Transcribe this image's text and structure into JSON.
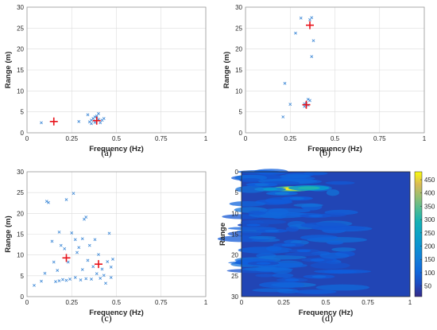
{
  "chart_data": [
    {
      "panel": "a",
      "type": "scatter",
      "caption": "(a)",
      "xlabel": "Frequency (Hz)",
      "ylabel": "Range (m)",
      "xlim": [
        0,
        1
      ],
      "ylim": [
        0,
        30
      ],
      "xticks": [
        "0",
        "0.25",
        "0.5",
        "0.75",
        "1"
      ],
      "yticks": [
        "0",
        "5",
        "10",
        "15",
        "20",
        "25",
        "30"
      ],
      "grid": true,
      "series": [
        {
          "marker": "x",
          "color": "#4a90d9",
          "points": [
            [
              0.08,
              2.4
            ],
            [
              0.29,
              2.7
            ],
            [
              0.34,
              4.3
            ],
            [
              0.35,
              2.6
            ],
            [
              0.36,
              3.0
            ],
            [
              0.37,
              3.4
            ],
            [
              0.38,
              2.5
            ],
            [
              0.39,
              4.0
            ],
            [
              0.4,
              4.6
            ],
            [
              0.4,
              3.2
            ],
            [
              0.41,
              2.4
            ],
            [
              0.42,
              3.0
            ],
            [
              0.43,
              3.4
            ],
            [
              0.36,
              2.2
            ],
            [
              0.38,
              3.8
            ]
          ]
        },
        {
          "marker": "+",
          "color": "#e8141c",
          "points": [
            [
              0.15,
              2.7
            ],
            [
              0.39,
              2.9
            ]
          ]
        }
      ]
    },
    {
      "panel": "b",
      "type": "scatter",
      "caption": "(b)",
      "xlabel": "Frequency (Hz)",
      "ylabel": "Range (m)",
      "xlim": [
        0,
        1
      ],
      "ylim": [
        0,
        30
      ],
      "xticks": [
        "0",
        "0.25",
        "0.5",
        "0.75",
        "1"
      ],
      "yticks": [
        "0",
        "5",
        "10",
        "15",
        "20",
        "25",
        "30"
      ],
      "grid": true,
      "series": [
        {
          "marker": "x",
          "color": "#4a90d9",
          "points": [
            [
              0.21,
              3.8
            ],
            [
              0.22,
              11.8
            ],
            [
              0.25,
              6.8
            ],
            [
              0.28,
              23.8
            ],
            [
              0.31,
              27.4
            ],
            [
              0.33,
              6.3
            ],
            [
              0.34,
              7.0
            ],
            [
              0.35,
              6.6
            ],
            [
              0.36,
              7.7
            ],
            [
              0.35,
              8.0
            ],
            [
              0.36,
              27.0
            ],
            [
              0.37,
              27.5
            ],
            [
              0.38,
              22.0
            ],
            [
              0.37,
              18.2
            ],
            [
              0.33,
              6.9
            ]
          ]
        },
        {
          "marker": "+",
          "color": "#e8141c",
          "points": [
            [
              0.36,
              25.7
            ],
            [
              0.34,
              6.7
            ]
          ]
        }
      ]
    },
    {
      "panel": "c",
      "type": "scatter",
      "caption": "(c)",
      "xlabel": "Frequency (Hz)",
      "ylabel": "Range (m)",
      "xlim": [
        0,
        1
      ],
      "ylim": [
        0,
        30
      ],
      "xticks": [
        "0",
        "0.25",
        "0.5",
        "0.75",
        "1"
      ],
      "yticks": [
        "0",
        "5",
        "10",
        "15",
        "20",
        "25",
        "30"
      ],
      "grid": true,
      "series": [
        {
          "marker": "x",
          "color": "#4a90d9",
          "points": [
            [
              0.04,
              2.7
            ],
            [
              0.08,
              3.7
            ],
            [
              0.1,
              5.6
            ],
            [
              0.11,
              22.9
            ],
            [
              0.12,
              22.6
            ],
            [
              0.14,
              13.3
            ],
            [
              0.15,
              8.3
            ],
            [
              0.16,
              3.6
            ],
            [
              0.17,
              6.3
            ],
            [
              0.18,
              3.8
            ],
            [
              0.18,
              15.5
            ],
            [
              0.19,
              12.3
            ],
            [
              0.2,
              4.1
            ],
            [
              0.21,
              11.5
            ],
            [
              0.22,
              3.9
            ],
            [
              0.22,
              23.3
            ],
            [
              0.23,
              8.3
            ],
            [
              0.24,
              4.2
            ],
            [
              0.25,
              15.3
            ],
            [
              0.26,
              24.8
            ],
            [
              0.27,
              4.6
            ],
            [
              0.27,
              13.7
            ],
            [
              0.28,
              10.6
            ],
            [
              0.29,
              11.8
            ],
            [
              0.3,
              4.0
            ],
            [
              0.31,
              6.5
            ],
            [
              0.31,
              13.9
            ],
            [
              0.32,
              18.6
            ],
            [
              0.33,
              19.1
            ],
            [
              0.33,
              4.3
            ],
            [
              0.34,
              8.7
            ],
            [
              0.35,
              12.3
            ],
            [
              0.36,
              4.2
            ],
            [
              0.37,
              7.2
            ],
            [
              0.38,
              13.7
            ],
            [
              0.39,
              5.5
            ],
            [
              0.4,
              10.1
            ],
            [
              0.41,
              4.4
            ],
            [
              0.42,
              6.6
            ],
            [
              0.43,
              5.1
            ],
            [
              0.44,
              3.2
            ],
            [
              0.45,
              8.4
            ],
            [
              0.46,
              15.2
            ],
            [
              0.47,
              7.1
            ],
            [
              0.48,
              9.0
            ],
            [
              0.47,
              4.6
            ]
          ]
        },
        {
          "marker": "+",
          "color": "#e8141c",
          "points": [
            [
              0.22,
              9.3
            ],
            [
              0.4,
              7.8
            ]
          ]
        }
      ]
    },
    {
      "panel": "d",
      "type": "heatmap",
      "caption": "(d)",
      "xlabel": "Frequency (Hz)",
      "ylabel": "Range",
      "xlim": [
        0,
        1
      ],
      "ylim": [
        30,
        0
      ],
      "xticks": [
        "0",
        "0.25",
        "0.5",
        "0.75",
        "1"
      ],
      "yticks": [
        "0",
        "5",
        "10",
        "15",
        "20",
        "25",
        "30"
      ],
      "colorbar": {
        "min": 10,
        "max": 480,
        "ticks": [
          "50",
          "100",
          "150",
          "200",
          "250",
          "300",
          "350",
          "400",
          "450"
        ],
        "colormap": "parula"
      },
      "hotspots": [
        {
          "f": 0.3,
          "r": 4.1,
          "value": 470
        },
        {
          "f": 0.4,
          "r": 3.9,
          "value": 300
        },
        {
          "f": 0.17,
          "r": 4.2,
          "value": 220
        },
        {
          "f": 0.24,
          "r": 5.2,
          "value": 150
        },
        {
          "f": 0.12,
          "r": 3.1,
          "value": 120
        },
        {
          "f": 0.33,
          "r": 6.4,
          "value": 110
        },
        {
          "f": 0.44,
          "r": 10.6,
          "value": 95
        },
        {
          "f": 0.18,
          "r": 14.2,
          "value": 100
        },
        {
          "f": 0.28,
          "r": 17.6,
          "value": 95
        },
        {
          "f": 0.45,
          "r": 21.2,
          "value": 90
        },
        {
          "f": 0.13,
          "r": 22.0,
          "value": 85
        },
        {
          "f": 0.46,
          "r": 25.2,
          "value": 100
        },
        {
          "f": 0.3,
          "r": 26.0,
          "value": 90
        },
        {
          "f": 0.07,
          "r": 12.8,
          "value": 80
        },
        {
          "f": 0.37,
          "r": 19.0,
          "value": 85
        }
      ]
    }
  ]
}
